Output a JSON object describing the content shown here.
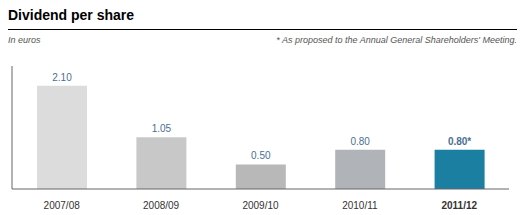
{
  "chart_data": {
    "type": "bar",
    "title": "Dividend per share",
    "subtitle": "In euros",
    "annotations": [
      "* As proposed to the Annual General Shareholders' Meeting."
    ],
    "categories": [
      "2007/08",
      "2008/09",
      "2009/10",
      "2010/11",
      "2011/12"
    ],
    "values": [
      2.1,
      1.05,
      0.5,
      0.8,
      0.8
    ],
    "value_labels": [
      "2.10",
      "1.05",
      "0.50",
      "0.80",
      "0.80*"
    ],
    "colors": [
      "#dcdcdc",
      "#c8c8c8",
      "#b8b8b8",
      "#b0b4b8",
      "#1a7fa0"
    ],
    "ylim": [
      0,
      2.5
    ],
    "grid": false,
    "data_labels": true,
    "tick_labels": "x"
  }
}
